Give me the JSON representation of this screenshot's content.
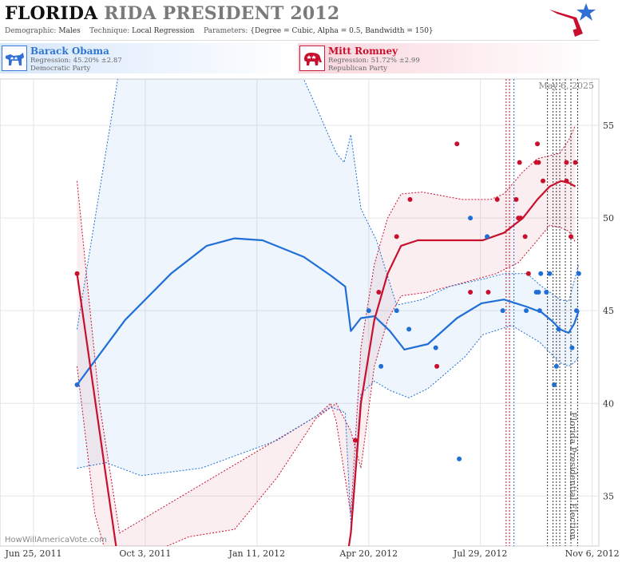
{
  "header": {
    "title_state": "FLORIDA",
    "title_rest": "RIDA PRESIDENT 2012",
    "demographic_label": "Demographic:",
    "demographic_value": "Males",
    "technique_label": "Technique:",
    "technique_value": "Local Regression",
    "parameters_label": "Parameters:",
    "parameters_value": "{Degree = Cubic, Alpha = 0.5, Bandwidth = 150}"
  },
  "candidates": {
    "obama": {
      "name": "Barack Obama",
      "regression": "Regression: 45.20% ±2.87",
      "party": "Democratic Party",
      "color": "#1f6fd6"
    },
    "romney": {
      "name": "Mitt Romney",
      "regression": "Regression: 51.72% ±2.99",
      "party": "Republican Party",
      "color": "#c8102e"
    }
  },
  "chart_meta": {
    "date_stamp": "May 6, 2025",
    "credit": "HowWillAmericaVote.com",
    "event_label": "Florida Presidential Election"
  },
  "chart_data": {
    "type": "scatter",
    "title": "FLORIDA RIDA PRESIDENT 2012",
    "xlabel": "",
    "ylabel": "",
    "x_ticks": [
      "Jun 25, 2011",
      "Oct 3, 2011",
      "Jan 11, 2012",
      "Apr 20, 2012",
      "Jul 29, 2012",
      "Nov 6, 2012"
    ],
    "x_range": [
      "2011-05-26",
      "2012-11-12"
    ],
    "y_ticks": [
      35,
      40,
      45,
      50,
      55
    ],
    "ylim": [
      32.3,
      57.5
    ],
    "grid": true,
    "series": [
      {
        "name": "Barack Obama",
        "color": "#1f6fd6",
        "points": [
          [
            "2011-08-03",
            41
          ],
          [
            "2012-04-20",
            45
          ],
          [
            "2012-05-01",
            42
          ],
          [
            "2012-05-15",
            45
          ],
          [
            "2012-05-26",
            44
          ],
          [
            "2012-06-19",
            43
          ],
          [
            "2012-07-10",
            37
          ],
          [
            "2012-07-20",
            50
          ],
          [
            "2012-08-04",
            49
          ],
          [
            "2012-08-18",
            45
          ],
          [
            "2012-09-08",
            45
          ],
          [
            "2012-09-17",
            46
          ],
          [
            "2012-09-19",
            46
          ],
          [
            "2012-09-20",
            45
          ],
          [
            "2012-09-21",
            47
          ],
          [
            "2012-09-26",
            46
          ],
          [
            "2012-09-29",
            47
          ],
          [
            "2012-10-03",
            41
          ],
          [
            "2012-10-05",
            42
          ],
          [
            "2012-10-07",
            44
          ],
          [
            "2012-10-19",
            43
          ],
          [
            "2012-10-23",
            45
          ],
          [
            "2012-10-25",
            47
          ]
        ],
        "regression": [
          [
            "2011-08-03",
            41.0
          ],
          [
            "2011-09-15",
            44.5
          ],
          [
            "2011-10-26",
            47.0
          ],
          [
            "2011-11-27",
            48.5
          ],
          [
            "2011-12-22",
            48.9
          ],
          [
            "2012-01-16",
            48.8
          ],
          [
            "2012-02-22",
            47.9
          ],
          [
            "2012-03-17",
            46.9
          ],
          [
            "2012-03-30",
            46.3
          ],
          [
            "2012-04-04",
            43.9
          ],
          [
            "2012-04-13",
            44.6
          ],
          [
            "2012-04-25",
            44.7
          ],
          [
            "2012-05-09",
            43.9
          ],
          [
            "2012-05-22",
            42.9
          ],
          [
            "2012-06-12",
            43.2
          ],
          [
            "2012-07-08",
            44.6
          ],
          [
            "2012-07-30",
            45.4
          ],
          [
            "2012-08-19",
            45.6
          ],
          [
            "2012-09-09",
            45.2
          ],
          [
            "2012-09-22",
            44.9
          ],
          [
            "2012-10-02",
            44.4
          ],
          [
            "2012-10-08",
            44.0
          ],
          [
            "2012-10-16",
            43.8
          ],
          [
            "2012-10-21",
            44.3
          ],
          [
            "2012-10-25",
            45.0
          ]
        ],
        "upper": [
          [
            "2011-08-03",
            44.0
          ],
          [
            "2011-09-13",
            60.0
          ],
          [
            "2011-11-09",
            70.0
          ],
          [
            "2012-02-09",
            70.0
          ],
          [
            "2012-03-04",
            56.0
          ],
          [
            "2012-03-22",
            53.5
          ],
          [
            "2012-03-29",
            53.0
          ],
          [
            "2012-04-04",
            54.5
          ],
          [
            "2012-04-13",
            50.5
          ],
          [
            "2012-04-27",
            48.8
          ],
          [
            "2012-05-15",
            45.3
          ],
          [
            "2012-06-07",
            45.6
          ],
          [
            "2012-07-01",
            46.3
          ],
          [
            "2012-07-31",
            46.7
          ],
          [
            "2012-08-19",
            47.0
          ],
          [
            "2012-09-09",
            47.0
          ],
          [
            "2012-09-20",
            46.4
          ],
          [
            "2012-10-08",
            45.6
          ],
          [
            "2012-10-16",
            45.5
          ],
          [
            "2012-10-25",
            47.5
          ]
        ],
        "lower": [
          [
            "2011-08-03",
            36.5
          ],
          [
            "2011-08-29",
            36.8
          ],
          [
            "2011-09-29",
            36.1
          ],
          [
            "2011-11-22",
            36.5
          ],
          [
            "2012-01-29",
            38.0
          ],
          [
            "2012-03-17",
            39.8
          ],
          [
            "2012-03-30",
            39.5
          ],
          [
            "2012-04-04",
            33.5
          ],
          [
            "2012-04-13",
            40.5
          ],
          [
            "2012-04-25",
            41.2
          ],
          [
            "2012-05-09",
            40.7
          ],
          [
            "2012-05-26",
            40.3
          ],
          [
            "2012-06-12",
            40.8
          ],
          [
            "2012-07-15",
            42.5
          ],
          [
            "2012-07-31",
            43.7
          ],
          [
            "2012-08-26",
            44.2
          ],
          [
            "2012-09-20",
            43.3
          ],
          [
            "2012-10-08",
            42.2
          ],
          [
            "2012-10-16",
            42.0
          ],
          [
            "2012-10-21",
            42.2
          ],
          [
            "2012-10-25",
            42.5
          ]
        ]
      },
      {
        "name": "Mitt Romney",
        "color": "#c8102e",
        "points": [
          [
            "2011-08-03",
            47
          ],
          [
            "2012-04-08",
            38
          ],
          [
            "2012-04-29",
            46
          ],
          [
            "2012-05-15",
            49
          ],
          [
            "2012-05-27",
            51
          ],
          [
            "2012-06-20",
            42
          ],
          [
            "2012-07-08",
            54
          ],
          [
            "2012-07-20",
            46
          ],
          [
            "2012-08-05",
            46
          ],
          [
            "2012-08-13",
            51
          ],
          [
            "2012-08-30",
            51
          ],
          [
            "2012-09-07",
            49
          ],
          [
            "2012-09-01",
            50
          ],
          [
            "2012-09-02",
            53
          ],
          [
            "2012-09-03",
            50
          ],
          [
            "2012-09-10",
            47
          ],
          [
            "2012-09-17",
            53
          ],
          [
            "2012-09-18",
            54
          ],
          [
            "2012-09-19",
            53
          ],
          [
            "2012-09-23",
            52
          ],
          [
            "2012-10-14",
            52
          ],
          [
            "2012-10-14",
            53
          ],
          [
            "2012-10-18",
            49
          ],
          [
            "2012-10-22",
            53
          ]
        ],
        "regression": [
          [
            "2011-08-03",
            47.0
          ],
          [
            "2011-08-29",
            36.0
          ],
          [
            "2011-09-10",
            31.0
          ],
          [
            "2012-03-30",
            31.0
          ],
          [
            "2012-04-04",
            33.0
          ],
          [
            "2012-04-13",
            40.0
          ],
          [
            "2012-04-25",
            44.5
          ],
          [
            "2012-05-07",
            47.0
          ],
          [
            "2012-05-19",
            48.5
          ],
          [
            "2012-06-03",
            48.8
          ],
          [
            "2012-07-05",
            48.8
          ],
          [
            "2012-07-31",
            48.8
          ],
          [
            "2012-08-19",
            49.2
          ],
          [
            "2012-09-05",
            50.0
          ],
          [
            "2012-09-18",
            51.0
          ],
          [
            "2012-09-29",
            51.7
          ],
          [
            "2012-10-09",
            52.0
          ],
          [
            "2012-10-16",
            51.9
          ],
          [
            "2012-10-22",
            51.7
          ]
        ],
        "upper": [
          [
            "2011-08-03",
            52.0
          ],
          [
            "2011-08-23",
            40.0
          ],
          [
            "2011-09-10",
            33.0
          ],
          [
            "2012-03-04",
            39.3
          ],
          [
            "2012-03-17",
            40.0
          ],
          [
            "2012-03-22",
            39.0
          ],
          [
            "2012-04-04",
            34.0
          ],
          [
            "2012-04-13",
            43.0
          ],
          [
            "2012-04-25",
            47.5
          ],
          [
            "2012-05-07",
            50.0
          ],
          [
            "2012-05-19",
            51.3
          ],
          [
            "2012-06-07",
            51.4
          ],
          [
            "2012-07-13",
            51.0
          ],
          [
            "2012-08-07",
            51.0
          ],
          [
            "2012-08-19",
            51.3
          ],
          [
            "2012-09-05",
            52.5
          ],
          [
            "2012-09-18",
            53.2
          ],
          [
            "2012-10-08",
            53.5
          ],
          [
            "2012-10-16",
            54.2
          ],
          [
            "2012-10-22",
            55.0
          ]
        ],
        "lower": [
          [
            "2011-08-03",
            42.0
          ],
          [
            "2011-08-19",
            34.0
          ],
          [
            "2011-09-02",
            31.0
          ],
          [
            "2011-11-11",
            32.8
          ],
          [
            "2011-12-22",
            33.2
          ],
          [
            "2012-01-29",
            36.0
          ],
          [
            "2012-03-04",
            39.2
          ],
          [
            "2012-03-22",
            40.0
          ],
          [
            "2012-04-04",
            38.5
          ],
          [
            "2012-04-13",
            36.5
          ],
          [
            "2012-04-25",
            42.0
          ],
          [
            "2012-05-07",
            44.5
          ],
          [
            "2012-05-19",
            45.8
          ],
          [
            "2012-06-12",
            46.0
          ],
          [
            "2012-07-13",
            46.5
          ],
          [
            "2012-08-12",
            47.0
          ],
          [
            "2012-09-01",
            47.6
          ],
          [
            "2012-09-18",
            48.8
          ],
          [
            "2012-09-29",
            49.6
          ],
          [
            "2012-10-08",
            49.5
          ],
          [
            "2012-10-16",
            49.3
          ],
          [
            "2012-10-22",
            48.7
          ]
        ]
      }
    ],
    "vertical_markers": {
      "red": [
        "2012-08-21",
        "2012-08-24"
      ],
      "blue": [
        "2012-08-28"
      ],
      "black": [
        "2012-09-27",
        "2012-10-02",
        "2012-10-05",
        "2012-10-08",
        "2012-10-13",
        "2012-10-18",
        "2012-10-24"
      ]
    },
    "event_date": "2012-10-24"
  }
}
